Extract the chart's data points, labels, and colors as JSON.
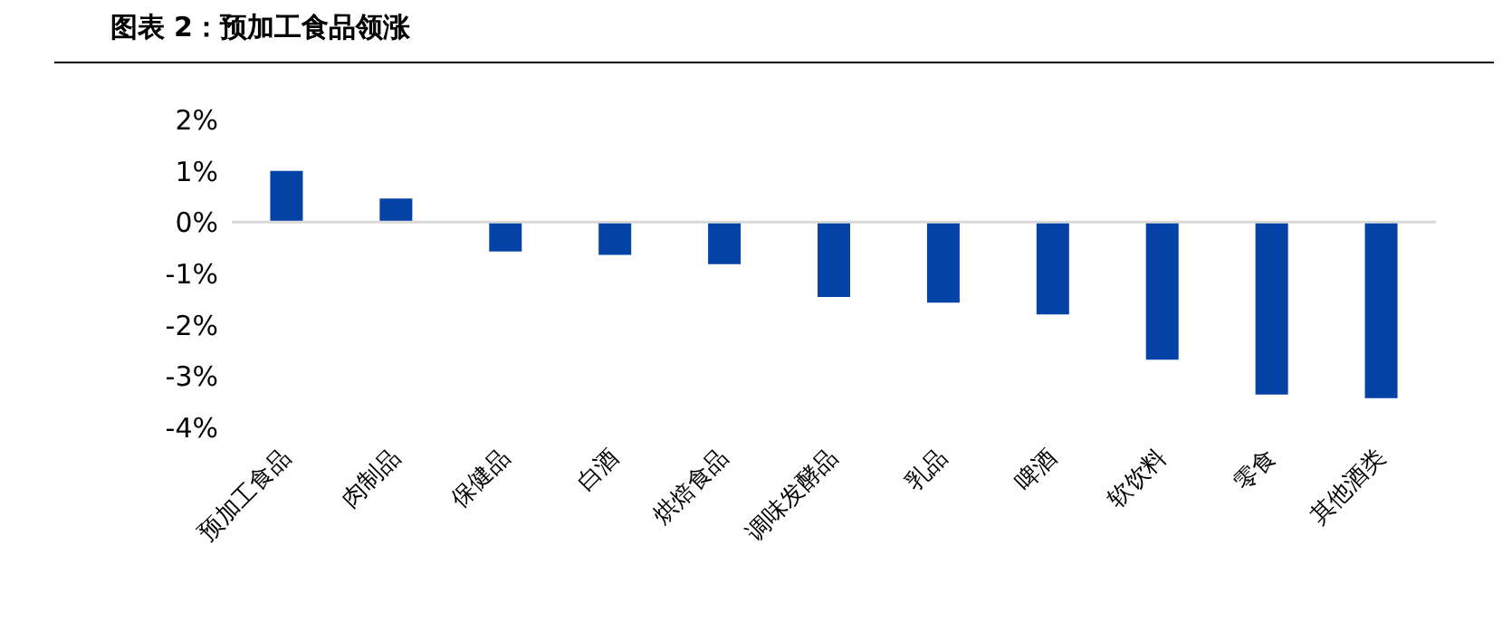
{
  "chart_data": {
    "type": "bar",
    "title": "图表 2：预加工食品领涨",
    "categories": [
      "预加工食品",
      "肉制品",
      "保健品",
      "白酒",
      "烘焙食品",
      "调味发酵品",
      "乳品",
      "啤酒",
      "软饮料",
      "零食",
      "其他酒类"
    ],
    "values": [
      1.0,
      0.46,
      -0.57,
      -0.64,
      -0.82,
      -1.46,
      -1.57,
      -1.8,
      -2.68,
      -3.36,
      -3.43
    ],
    "color": "#0442a5",
    "ylim": [
      -4,
      2
    ],
    "yticks": [
      {
        "value": 2,
        "label": "2%"
      },
      {
        "value": 1,
        "label": "1%"
      },
      {
        "value": 0,
        "label": "0%"
      },
      {
        "value": -1,
        "label": "-1%"
      },
      {
        "value": -2,
        "label": "-2%"
      },
      {
        "value": -3,
        "label": "-3%"
      },
      {
        "value": -4,
        "label": "-4%"
      }
    ],
    "ref_lines": [
      {
        "axis": "y",
        "value": 0,
        "color": "#d9d9d9"
      }
    ],
    "grid": false
  }
}
